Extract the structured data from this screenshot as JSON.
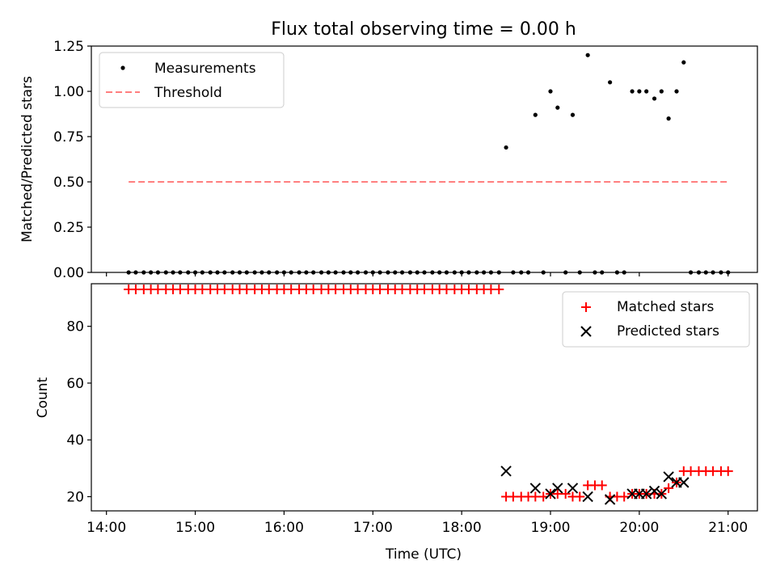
{
  "figure": {
    "title": "Flux total observing time = 0.00 h",
    "xlabel": "Time (UTC)",
    "xticks": [
      "14:00",
      "15:00",
      "16:00",
      "17:00",
      "18:00",
      "19:00",
      "20:00",
      "21:00"
    ]
  },
  "chart_data": [
    {
      "type": "scatter",
      "title": "Flux total observing time = 0.00 h",
      "xlabel": "",
      "ylabel": "Matched/Predicted stars",
      "x_unit": "hours (UTC)",
      "xlim": [
        13.83,
        21.33
      ],
      "ylim": [
        0,
        1.25
      ],
      "yticks": [
        "0.00",
        "0.25",
        "0.50",
        "0.75",
        "1.00",
        "1.25"
      ],
      "legend": {
        "placement": "upper left",
        "entries": [
          "Measurements",
          "Threshold"
        ]
      },
      "series": [
        {
          "name": "Measurements",
          "color": "#000000",
          "marker": "dot",
          "points": [
            [
              14.25,
              0
            ],
            [
              14.33,
              0
            ],
            [
              14.42,
              0
            ],
            [
              14.5,
              0
            ],
            [
              14.58,
              0
            ],
            [
              14.67,
              0
            ],
            [
              14.75,
              0
            ],
            [
              14.83,
              0
            ],
            [
              14.92,
              0
            ],
            [
              15.0,
              0
            ],
            [
              15.08,
              0
            ],
            [
              15.17,
              0
            ],
            [
              15.25,
              0
            ],
            [
              15.33,
              0
            ],
            [
              15.42,
              0
            ],
            [
              15.5,
              0
            ],
            [
              15.58,
              0
            ],
            [
              15.67,
              0
            ],
            [
              15.75,
              0
            ],
            [
              15.83,
              0
            ],
            [
              15.92,
              0
            ],
            [
              16.0,
              0
            ],
            [
              16.08,
              0
            ],
            [
              16.17,
              0
            ],
            [
              16.25,
              0
            ],
            [
              16.33,
              0
            ],
            [
              16.42,
              0
            ],
            [
              16.5,
              0
            ],
            [
              16.58,
              0
            ],
            [
              16.67,
              0
            ],
            [
              16.75,
              0
            ],
            [
              16.83,
              0
            ],
            [
              16.92,
              0
            ],
            [
              17.0,
              0
            ],
            [
              17.08,
              0
            ],
            [
              17.17,
              0
            ],
            [
              17.25,
              0
            ],
            [
              17.33,
              0
            ],
            [
              17.42,
              0
            ],
            [
              17.5,
              0
            ],
            [
              17.58,
              0
            ],
            [
              17.67,
              0
            ],
            [
              17.75,
              0
            ],
            [
              17.83,
              0
            ],
            [
              17.92,
              0
            ],
            [
              18.0,
              0
            ],
            [
              18.08,
              0
            ],
            [
              18.17,
              0
            ],
            [
              18.25,
              0
            ],
            [
              18.33,
              0
            ],
            [
              18.42,
              0
            ],
            [
              18.5,
              0.69
            ],
            [
              18.58,
              0
            ],
            [
              18.67,
              0
            ],
            [
              18.75,
              0
            ],
            [
              18.83,
              0.87
            ],
            [
              18.92,
              0
            ],
            [
              19.0,
              1.0
            ],
            [
              19.08,
              0.91
            ],
            [
              19.17,
              0
            ],
            [
              19.25,
              0.87
            ],
            [
              19.33,
              0
            ],
            [
              19.42,
              1.2
            ],
            [
              19.5,
              0
            ],
            [
              19.58,
              0
            ],
            [
              19.67,
              1.05
            ],
            [
              19.75,
              0
            ],
            [
              19.83,
              0
            ],
            [
              19.92,
              1.0
            ],
            [
              20.0,
              1.0
            ],
            [
              20.08,
              1.0
            ],
            [
              20.17,
              0.96
            ],
            [
              20.25,
              1.0
            ],
            [
              20.33,
              0.85
            ],
            [
              20.42,
              1.0
            ],
            [
              20.5,
              1.16
            ],
            [
              20.58,
              0
            ],
            [
              20.67,
              0
            ],
            [
              20.75,
              0
            ],
            [
              20.83,
              0
            ],
            [
              20.92,
              0
            ],
            [
              21.0,
              0
            ]
          ]
        },
        {
          "name": "Threshold",
          "color": "#ff7f7f",
          "style": "dashed",
          "points": [
            [
              14.25,
              0.5
            ],
            [
              21.0,
              0.5
            ]
          ]
        }
      ]
    },
    {
      "type": "scatter",
      "xlabel": "Time (UTC)",
      "ylabel": "Count",
      "x_unit": "hours (UTC)",
      "xlim": [
        13.83,
        21.33
      ],
      "ylim": [
        15,
        95
      ],
      "yticks": [
        "20",
        "40",
        "60",
        "80"
      ],
      "legend": {
        "placement": "upper right",
        "entries": [
          "Matched stars",
          "Predicted stars"
        ]
      },
      "series": [
        {
          "name": "Matched stars",
          "color": "#ff0000",
          "marker": "plus",
          "points": [
            [
              14.25,
              93
            ],
            [
              14.33,
              93
            ],
            [
              14.42,
              93
            ],
            [
              14.5,
              93
            ],
            [
              14.58,
              93
            ],
            [
              14.67,
              93
            ],
            [
              14.75,
              93
            ],
            [
              14.83,
              93
            ],
            [
              14.92,
              93
            ],
            [
              15.0,
              93
            ],
            [
              15.08,
              93
            ],
            [
              15.17,
              93
            ],
            [
              15.25,
              93
            ],
            [
              15.33,
              93
            ],
            [
              15.42,
              93
            ],
            [
              15.5,
              93
            ],
            [
              15.58,
              93
            ],
            [
              15.67,
              93
            ],
            [
              15.75,
              93
            ],
            [
              15.83,
              93
            ],
            [
              15.92,
              93
            ],
            [
              16.0,
              93
            ],
            [
              16.08,
              93
            ],
            [
              16.17,
              93
            ],
            [
              16.25,
              93
            ],
            [
              16.33,
              93
            ],
            [
              16.42,
              93
            ],
            [
              16.5,
              93
            ],
            [
              16.58,
              93
            ],
            [
              16.67,
              93
            ],
            [
              16.75,
              93
            ],
            [
              16.83,
              93
            ],
            [
              16.92,
              93
            ],
            [
              17.0,
              93
            ],
            [
              17.08,
              93
            ],
            [
              17.17,
              93
            ],
            [
              17.25,
              93
            ],
            [
              17.33,
              93
            ],
            [
              17.42,
              93
            ],
            [
              17.5,
              93
            ],
            [
              17.58,
              93
            ],
            [
              17.67,
              93
            ],
            [
              17.75,
              93
            ],
            [
              17.83,
              93
            ],
            [
              17.92,
              93
            ],
            [
              18.0,
              93
            ],
            [
              18.08,
              93
            ],
            [
              18.17,
              93
            ],
            [
              18.25,
              93
            ],
            [
              18.33,
              93
            ],
            [
              18.42,
              93
            ],
            [
              18.5,
              20
            ],
            [
              18.58,
              20
            ],
            [
              18.67,
              20
            ],
            [
              18.75,
              20
            ],
            [
              18.83,
              20
            ],
            [
              18.92,
              20
            ],
            [
              19.0,
              21
            ],
            [
              19.08,
              21
            ],
            [
              19.17,
              21
            ],
            [
              19.25,
              20
            ],
            [
              19.33,
              20
            ],
            [
              19.42,
              24
            ],
            [
              19.5,
              24
            ],
            [
              19.58,
              24
            ],
            [
              19.67,
              20
            ],
            [
              19.75,
              20
            ],
            [
              19.83,
              20
            ],
            [
              19.92,
              21
            ],
            [
              20.0,
              21
            ],
            [
              20.08,
              21
            ],
            [
              20.17,
              21
            ],
            [
              20.25,
              21
            ],
            [
              20.33,
              23
            ],
            [
              20.42,
              25
            ],
            [
              20.5,
              29
            ],
            [
              20.58,
              29
            ],
            [
              20.67,
              29
            ],
            [
              20.75,
              29
            ],
            [
              20.83,
              29
            ],
            [
              20.92,
              29
            ],
            [
              21.0,
              29
            ]
          ]
        },
        {
          "name": "Predicted stars",
          "color": "#000000",
          "marker": "x",
          "points": [
            [
              18.5,
              29
            ],
            [
              18.83,
              23
            ],
            [
              19.0,
              21
            ],
            [
              19.08,
              23
            ],
            [
              19.25,
              23
            ],
            [
              19.42,
              20
            ],
            [
              19.67,
              19
            ],
            [
              19.92,
              21
            ],
            [
              20.0,
              21
            ],
            [
              20.08,
              21
            ],
            [
              20.17,
              22
            ],
            [
              20.25,
              21
            ],
            [
              20.33,
              27
            ],
            [
              20.42,
              25
            ],
            [
              20.5,
              25
            ]
          ]
        }
      ]
    }
  ]
}
